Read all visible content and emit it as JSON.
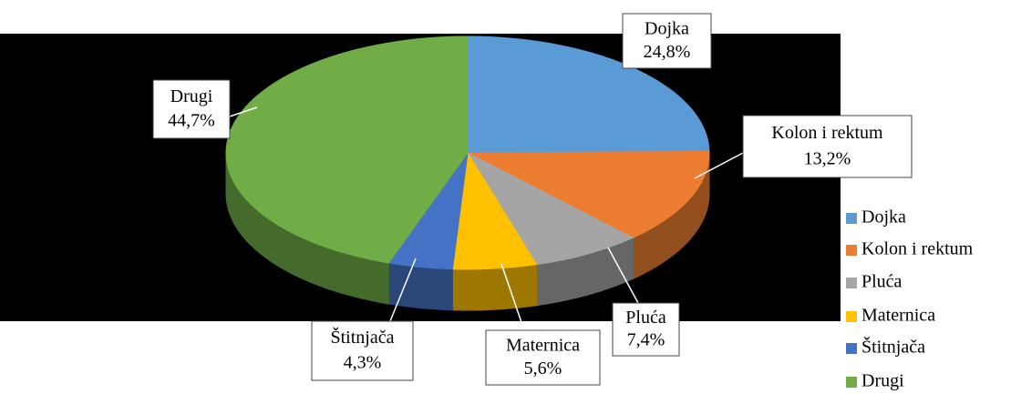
{
  "chart_data": {
    "type": "pie",
    "categories": [
      "Dojka",
      "Kolon i rektum",
      "Pluća",
      "Maternica",
      "Štitnjača",
      "Drugi"
    ],
    "values": [
      24.8,
      13.2,
      7.4,
      5.6,
      4.3,
      44.7
    ],
    "value_labels": [
      "24,8%",
      "13,2%",
      "7,4%",
      "5,6%",
      "4,3%",
      "44,7%"
    ],
    "colors": [
      "#5b9bd5",
      "#ed7d31",
      "#a5a5a5",
      "#ffc000",
      "#4472c4",
      "#70ad47"
    ],
    "legend": "right"
  }
}
